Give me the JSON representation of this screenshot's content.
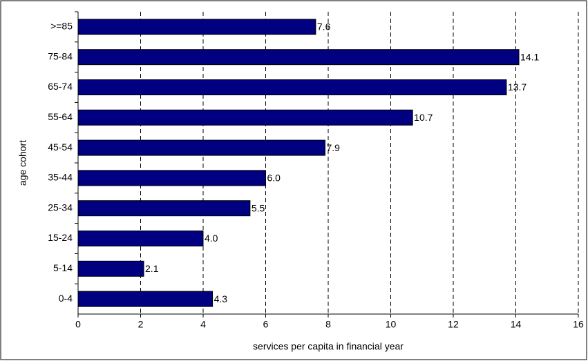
{
  "chart_data": {
    "type": "bar",
    "orientation": "horizontal",
    "xlabel": "services per capita in financial year",
    "ylabel": "age cohort",
    "categories": [
      ">=85",
      "75-84",
      "65-74",
      "55-64",
      "45-54",
      "35-44",
      "25-34",
      "15-24",
      "5-14",
      "0-4"
    ],
    "values": [
      7.6,
      14.1,
      13.7,
      10.7,
      7.9,
      6.0,
      5.5,
      4.0,
      2.1,
      4.3
    ],
    "value_labels": [
      "7.6",
      "14.1",
      "13.7",
      "10.7",
      "7.9",
      "6.0",
      "5.5",
      "4.0",
      "2.1",
      "4.3"
    ],
    "color": "#000080",
    "xlim": [
      0,
      16
    ],
    "xticks": [
      0,
      2,
      4,
      6,
      8,
      10,
      12,
      14,
      16
    ],
    "grid": true
  }
}
